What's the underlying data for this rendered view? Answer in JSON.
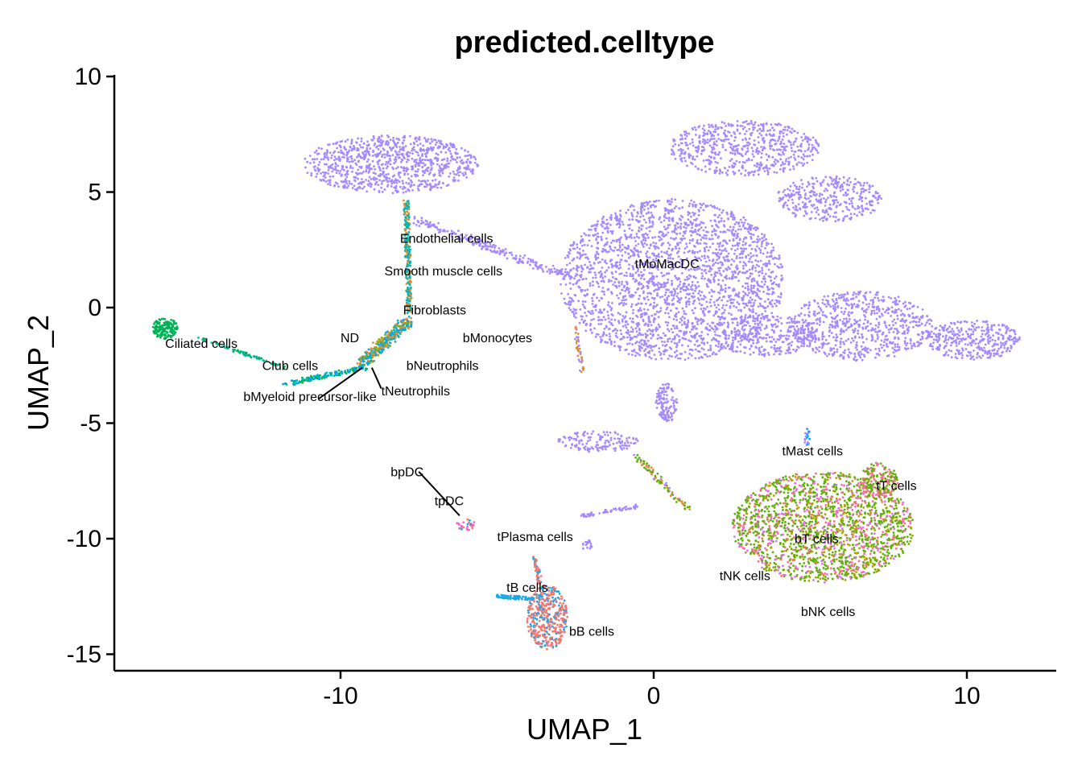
{
  "chart_data": {
    "type": "scatter",
    "title": "predicted.celltype",
    "xlabel": "UMAP_1",
    "ylabel": "UMAP_2",
    "xlim": [
      -17.3,
      12.8
    ],
    "ylim": [
      -15.7,
      10
    ],
    "xticks": [
      -10,
      0,
      10
    ],
    "yticks": [
      10,
      5,
      0,
      -5,
      -10,
      -15
    ],
    "xtick_labels": [
      "-10",
      "0",
      "10"
    ],
    "ytick_labels": [
      "10",
      "5",
      "0",
      "-5",
      "-10",
      "-15"
    ],
    "grid": false,
    "legend": "none",
    "point_colors": {
      "tMoMacDC": "#a58afe",
      "Endothelial cells": "#00b6b3",
      "Fibroblasts": "#e58b37",
      "bMonocytes": "#9ea400",
      "bNeutrophils": "#00a6ff",
      "tNeutrophils": "#00a6e0",
      "Ciliated cells": "#00b157",
      "Club cells": "#00bb9f",
      "tT cells": "#5bb300",
      "bT cells": "#fd6d94",
      "tNK cells": "#e76bf3",
      "bNK cells": "#b4a000",
      "bB cells": "#f8766d",
      "tB cells": "#1aa7e8",
      "pDC": "#f564e3"
    },
    "clusters": [
      {
        "name": "tMoMacDC",
        "type": "ellipse",
        "cx": 0.6,
        "cy": 1.2,
        "rx": 3.6,
        "ry": 3.5,
        "n": 2400,
        "colors": [
          "tMoMacDC"
        ]
      },
      {
        "name": "tMoMacDC",
        "type": "ellipse",
        "cx": 2.9,
        "cy": 6.9,
        "rx": 2.4,
        "ry": 1.2,
        "n": 600,
        "colors": [
          "tMoMacDC"
        ]
      },
      {
        "name": "tMoMacDC",
        "type": "ellipse",
        "cx": 5.6,
        "cy": 4.7,
        "rx": 1.7,
        "ry": 1.0,
        "n": 350,
        "colors": [
          "tMoMacDC"
        ]
      },
      {
        "name": "tMoMacDC",
        "type": "ellipse",
        "cx": 6.6,
        "cy": -0.8,
        "rx": 2.3,
        "ry": 1.5,
        "n": 700,
        "colors": [
          "tMoMacDC"
        ]
      },
      {
        "name": "tMoMacDC",
        "type": "ellipse",
        "cx": 10.2,
        "cy": -1.4,
        "rx": 1.5,
        "ry": 0.85,
        "n": 350,
        "colors": [
          "tMoMacDC"
        ]
      },
      {
        "name": "tMoMacDC",
        "type": "ellipse",
        "cx": 3.5,
        "cy": -1.2,
        "rx": 1.7,
        "ry": 0.9,
        "n": 300,
        "colors": [
          "tMoMacDC"
        ]
      },
      {
        "name": "tMoMacDC",
        "type": "line",
        "x0": -7.6,
        "y0": 3.8,
        "x1": -2.6,
        "y1": 1.3,
        "w": 0.35,
        "n": 220,
        "colors": [
          "tMoMacDC"
        ]
      },
      {
        "name": "tMoMacDC",
        "type": "ellipse",
        "cx": -8.4,
        "cy": 6.2,
        "rx": 2.8,
        "ry": 1.25,
        "n": 900,
        "colors": [
          "tMoMacDC"
        ]
      },
      {
        "name": "tMoMacDC",
        "type": "ellipse",
        "cx": 0.4,
        "cy": -4.1,
        "rx": 0.35,
        "ry": 0.9,
        "n": 120,
        "colors": [
          "tMoMacDC"
        ]
      },
      {
        "name": "tMoMacDC",
        "type": "ellipse",
        "cx": -1.8,
        "cy": -5.8,
        "rx": 1.3,
        "ry": 0.45,
        "n": 140,
        "colors": [
          "tMoMacDC"
        ]
      },
      {
        "name": "tMoMacDC",
        "type": "line",
        "x0": -0.6,
        "y0": -6.4,
        "x1": 1.1,
        "y1": -8.7,
        "w": 0.2,
        "n": 90,
        "colors": [
          "tMoMacDC",
          "Fibroblasts",
          "tT cells"
        ]
      },
      {
        "name": "tMoMacDC",
        "type": "line",
        "x0": -2.3,
        "y0": -9.0,
        "x1": -0.5,
        "y1": -8.6,
        "w": 0.15,
        "n": 60,
        "colors": [
          "tMoMacDC"
        ]
      },
      {
        "name": "tMoMacDC",
        "type": "ellipse",
        "cx": -2.1,
        "cy": -10.3,
        "rx": 0.18,
        "ry": 0.25,
        "n": 20,
        "colors": [
          "tMoMacDC"
        ]
      },
      {
        "name": "Fibroblasts",
        "type": "line",
        "x0": -2.5,
        "y0": -0.8,
        "x1": -2.3,
        "y1": -2.8,
        "w": 0.15,
        "n": 40,
        "colors": [
          "Fibroblasts",
          "tMoMacDC"
        ]
      },
      {
        "name": "Endothelial cells",
        "type": "line",
        "x0": -7.9,
        "y0": 4.6,
        "x1": -7.8,
        "y1": -0.2,
        "w": 0.18,
        "n": 260,
        "colors": [
          "Endothelial cells",
          "Endothelial cells",
          "Fibroblasts"
        ]
      },
      {
        "name": "Fibroblasts",
        "type": "line",
        "x0": -7.8,
        "y0": -0.5,
        "x1": -9.3,
        "y1": -2.4,
        "w": 0.4,
        "n": 340,
        "colors": [
          "Fibroblasts",
          "bMonocytes",
          "bNeutrophils",
          "Endothelial cells"
        ]
      },
      {
        "name": "bMyeloid",
        "type": "line",
        "x0": -9.2,
        "y0": -2.6,
        "x1": -11.8,
        "y1": -3.3,
        "w": 0.2,
        "n": 140,
        "colors": [
          "Endothelial cells",
          "bNeutrophils",
          "Ciliated cells"
        ]
      },
      {
        "name": "Club cells",
        "type": "line",
        "x0": -11.8,
        "y0": -2.6,
        "x1": -14.5,
        "y1": -1.3,
        "w": 0.12,
        "n": 70,
        "colors": [
          "Club cells",
          "Ciliated cells"
        ]
      },
      {
        "name": "Ciliated cells",
        "type": "ellipse",
        "cx": -15.6,
        "cy": -0.9,
        "rx": 0.4,
        "ry": 0.45,
        "n": 160,
        "colors": [
          "Ciliated cells"
        ]
      },
      {
        "name": "tT cells",
        "type": "ellipse",
        "cx": 5.4,
        "cy": -9.5,
        "rx": 2.9,
        "ry": 2.4,
        "n": 1900,
        "colors": [
          "tT cells",
          "tT cells",
          "tT cells",
          "bT cells",
          "tNK cells",
          "bNK cells"
        ]
      },
      {
        "name": "tT cells",
        "type": "ellipse",
        "cx": 7.2,
        "cy": -7.5,
        "rx": 0.6,
        "ry": 0.8,
        "n": 180,
        "colors": [
          "bT cells",
          "tT cells"
        ]
      },
      {
        "name": "tMast cells",
        "type": "ellipse",
        "cx": 4.9,
        "cy": -5.7,
        "rx": 0.1,
        "ry": 0.45,
        "n": 20,
        "colors": [
          "tMoMacDC",
          "bNeutrophils"
        ]
      },
      {
        "name": "bB cells",
        "type": "ellipse",
        "cx": -3.4,
        "cy": -13.4,
        "rx": 0.65,
        "ry": 1.4,
        "n": 420,
        "colors": [
          "bB cells",
          "bB cells",
          "tB cells"
        ]
      },
      {
        "name": "tB cells",
        "type": "line",
        "x0": -5.0,
        "y0": -12.5,
        "x1": -3.8,
        "y1": -12.6,
        "w": 0.15,
        "n": 70,
        "colors": [
          "tB cells"
        ]
      },
      {
        "name": "bB cells",
        "type": "line",
        "x0": -3.8,
        "y0": -10.8,
        "x1": -3.6,
        "y1": -12.0,
        "w": 0.15,
        "n": 50,
        "colors": [
          "bB cells",
          "tB cells"
        ]
      },
      {
        "name": "pDC",
        "type": "ellipse",
        "cx": -6.0,
        "cy": -9.4,
        "rx": 0.3,
        "ry": 0.25,
        "n": 30,
        "colors": [
          "pDC",
          "bB cells",
          "tB cells"
        ]
      }
    ],
    "labels": [
      {
        "text": "tMoMacDC",
        "x": -0.6,
        "y": 1.7
      },
      {
        "text": "Endothelial cells",
        "x": -8.1,
        "y": 2.8
      },
      {
        "text": "Smooth muscle cells",
        "x": -8.6,
        "y": 1.4
      },
      {
        "text": "Fibroblasts",
        "x": -8.0,
        "y": -0.3
      },
      {
        "text": "ND",
        "x": -10.0,
        "y": -1.5
      },
      {
        "text": "bMonocytes",
        "x": -6.1,
        "y": -1.5
      },
      {
        "text": "Ciliated cells",
        "x": -15.6,
        "y": -1.75
      },
      {
        "text": "Club cells",
        "x": -12.5,
        "y": -2.7
      },
      {
        "text": "bNeutrophils",
        "x": -7.9,
        "y": -2.7
      },
      {
        "text": "tNeutrophils",
        "x": -8.7,
        "y": -3.8
      },
      {
        "text": "bMyeloid precursor-like",
        "x": -13.1,
        "y": -4.05
      },
      {
        "text": "tMast cells",
        "x": 4.1,
        "y": -6.4
      },
      {
        "text": "tT cells",
        "x": 7.1,
        "y": -7.9
      },
      {
        "text": "bpDC",
        "x": -8.4,
        "y": -7.3
      },
      {
        "text": "tpDC",
        "x": -7.0,
        "y": -8.55
      },
      {
        "text": "tPlasma cells",
        "x": -5.0,
        "y": -10.1
      },
      {
        "text": "bT cells",
        "x": 4.5,
        "y": -10.2
      },
      {
        "text": "tNK cells",
        "x": 2.1,
        "y": -11.8
      },
      {
        "text": "tB cells",
        "x": -4.7,
        "y": -12.3
      },
      {
        "text": "bNK cells",
        "x": 4.7,
        "y": -13.35
      },
      {
        "text": "bB cells",
        "x": -2.7,
        "y": -14.2
      }
    ],
    "leaders": [
      {
        "x0": -7.5,
        "y0": -7.1,
        "x1": -6.2,
        "y1": -9.0
      },
      {
        "x0": -9.3,
        "y0": -2.6,
        "x1": -10.7,
        "y1": -3.95
      },
      {
        "x0": -9.0,
        "y0": -2.6,
        "x1": -8.7,
        "y1": -3.5
      }
    ]
  }
}
